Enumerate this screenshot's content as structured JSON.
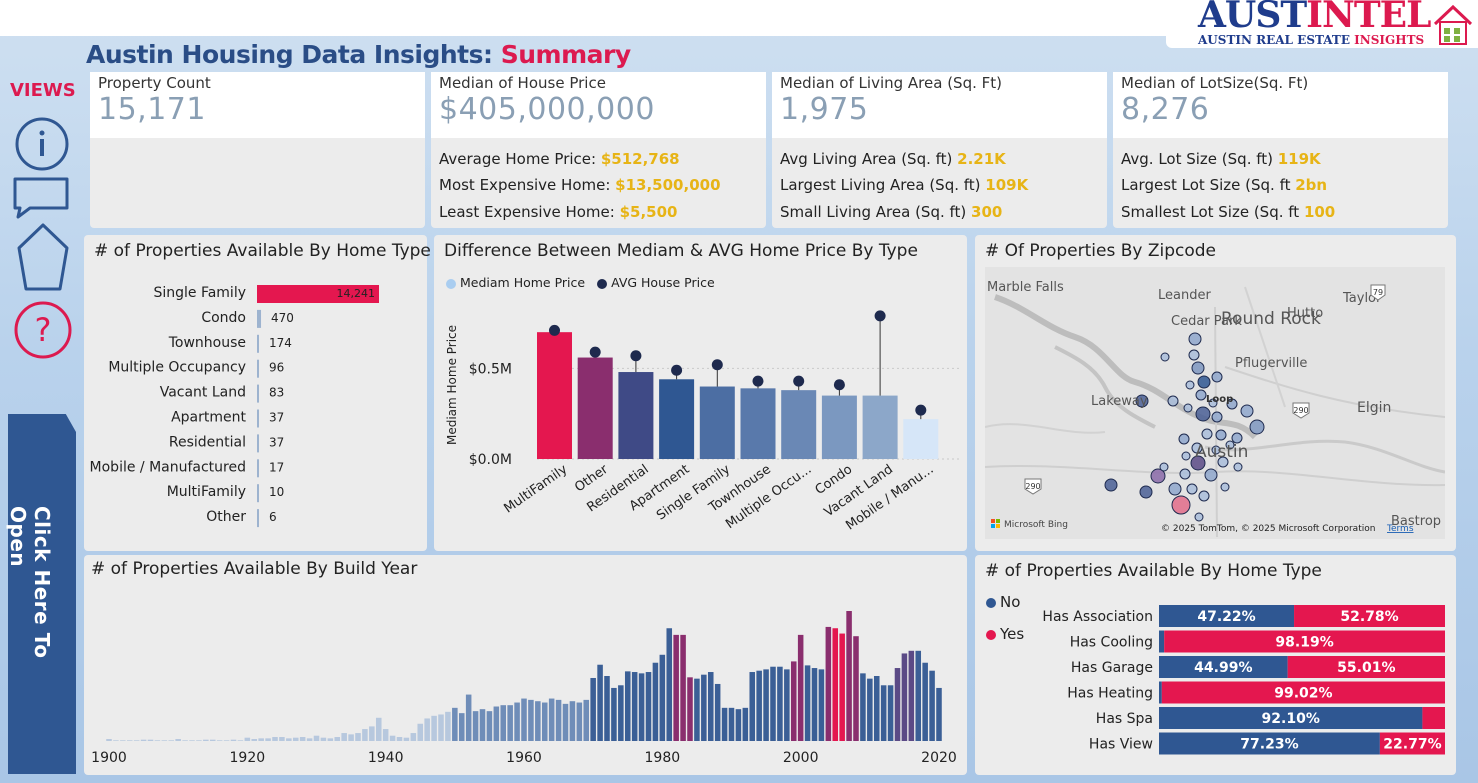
{
  "brand": {
    "logo_part1": "AUST",
    "logo_part2": "INTEL",
    "tagline_part1": "AUSTIN REAL ESTATE ",
    "tagline_part2": "INSIGHTS"
  },
  "header": {
    "title_main": "Austin Housing Data Insights: ",
    "title_accent": "Summary"
  },
  "sidebar": {
    "views_label": "VIEWS",
    "items": [
      {
        "icon": "info-icon"
      },
      {
        "icon": "chat-icon"
      },
      {
        "icon": "pentagon-icon"
      },
      {
        "icon": "help-icon"
      }
    ],
    "open_label": "Click Here To Open"
  },
  "kpis": [
    {
      "label": "Property Count",
      "value": "15,171",
      "lines": []
    },
    {
      "label": "Median of House Price",
      "value": "$405,000,000",
      "lines": [
        {
          "label": "Average Home Price: ",
          "value": "$512,768"
        },
        {
          "label": "Most Expensive Home: ",
          "value": "$13,500,000"
        },
        {
          "label": "Least Expensive Home: ",
          "value": "$5,500"
        }
      ]
    },
    {
      "label": "Median of Living Area (Sq. Ft)",
      "value": "1,975",
      "lines": [
        {
          "label": "Avg Living Area (Sq. ft) ",
          "value": "2.21K"
        },
        {
          "label": "Largest Living Area (Sq. ft) ",
          "value": "109K"
        },
        {
          "label": "Small Living Area (Sq. ft) ",
          "value": "300"
        }
      ]
    },
    {
      "label": "Median of LotSize(Sq. Ft)",
      "value": "8,276",
      "lines": [
        {
          "label": "Avg. Lot Size (Sq. ft) ",
          "value": "119K"
        },
        {
          "label": "Largest Lot Size (Sq. ft ",
          "value": "2bn"
        },
        {
          "label": "Smallest Lot Size (Sq. ft ",
          "value": "100"
        }
      ]
    }
  ],
  "colors": {
    "accent": "#dc1a4f",
    "title_blue": "#2a4d86",
    "highlight_yellow": "#e7b416",
    "no_blue": "#2f5792",
    "yes_red": "#e4174f"
  },
  "chart_data": [
    {
      "id": "home_type_bar",
      "type": "bar",
      "title": "# of Properties Available By Home Type",
      "orientation": "horizontal",
      "categories": [
        "Single Family",
        "Condo",
        "Townhouse",
        "Multiple Occupancy",
        "Vacant Land",
        "Apartment",
        "Residential",
        "Mobile / Manufactured",
        "MultiFamily",
        "Other"
      ],
      "values": [
        14241,
        470,
        174,
        96,
        83,
        37,
        37,
        17,
        10,
        6
      ],
      "value_labels": [
        "14,241",
        "470",
        "174",
        "96",
        "83",
        "37",
        "37",
        "17",
        "10",
        "6"
      ]
    },
    {
      "id": "median_vs_avg",
      "type": "bar",
      "title": "Difference Between Mediam & AVG Home Price By Type",
      "legend": [
        "Mediam Home Price",
        "AVG House Price"
      ],
      "legend_position": "top-left",
      "ylabel": "Mediam Home Price",
      "ytick_labels": [
        "$0.0M",
        "$0.5M"
      ],
      "yticks": [
        0,
        0.5
      ],
      "ylim": [
        0,
        0.85
      ],
      "categories": [
        "MultiFamily",
        "Other",
        "Residential",
        "Apartment",
        "Single Family",
        "Townhouse",
        "Multiple Occu...",
        "Condo",
        "Vacant Land",
        "Mobile / Manu..."
      ],
      "series": [
        {
          "name": "Mediam Home Price",
          "values": [
            0.7,
            0.56,
            0.48,
            0.44,
            0.4,
            0.39,
            0.38,
            0.35,
            0.35,
            0.22
          ]
        },
        {
          "name": "AVG House Price",
          "values": [
            0.71,
            0.59,
            0.57,
            0.49,
            0.52,
            0.43,
            0.43,
            0.41,
            0.79,
            0.27
          ]
        }
      ],
      "bar_colors": [
        "#e4174f",
        "#8a2e6e",
        "#3f4a86",
        "#2f5792",
        "#4c6ea3",
        "#5979ab",
        "#6a88b5",
        "#7b98c0",
        "#8ca7c9",
        "#d6e6f8"
      ]
    },
    {
      "id": "build_year",
      "type": "bar",
      "title": "# of Properties Available By Build Year",
      "xtick_labels": [
        "1900",
        "1920",
        "1940",
        "1960",
        "1980",
        "2000",
        "2020"
      ],
      "x": [
        1900,
        1901,
        1902,
        1903,
        1904,
        1905,
        1906,
        1907,
        1908,
        1909,
        1910,
        1911,
        1912,
        1913,
        1914,
        1915,
        1916,
        1917,
        1918,
        1919,
        1920,
        1921,
        1922,
        1923,
        1924,
        1925,
        1926,
        1927,
        1928,
        1929,
        1930,
        1931,
        1932,
        1933,
        1934,
        1935,
        1936,
        1937,
        1938,
        1939,
        1940,
        1941,
        1942,
        1943,
        1944,
        1945,
        1946,
        1947,
        1948,
        1949,
        1950,
        1951,
        1952,
        1953,
        1954,
        1955,
        1956,
        1957,
        1958,
        1959,
        1960,
        1961,
        1962,
        1963,
        1964,
        1965,
        1966,
        1967,
        1968,
        1969,
        1970,
        1971,
        1972,
        1973,
        1974,
        1975,
        1976,
        1977,
        1978,
        1979,
        1980,
        1981,
        1982,
        1983,
        1984,
        1985,
        1986,
        1987,
        1988,
        1989,
        1990,
        1991,
        1992,
        1993,
        1994,
        1995,
        1996,
        1997,
        1998,
        1999,
        2000,
        2001,
        2002,
        2003,
        2004,
        2005,
        2006,
        2007,
        2008,
        2009,
        2010,
        2011,
        2012,
        2013,
        2014,
        2015,
        2016,
        2017,
        2018,
        2019,
        2020
      ],
      "values": [
        3,
        1,
        1,
        1,
        1,
        2,
        2,
        1,
        1,
        1,
        3,
        1,
        1,
        1,
        2,
        2,
        1,
        1,
        2,
        1,
        5,
        3,
        4,
        4,
        6,
        6,
        4,
        5,
        6,
        4,
        8,
        5,
        4,
        6,
        12,
        10,
        12,
        18,
        22,
        35,
        18,
        8,
        6,
        5,
        12,
        26,
        34,
        38,
        40,
        44,
        50,
        42,
        70,
        45,
        48,
        45,
        52,
        54,
        54,
        58,
        64,
        62,
        60,
        58,
        64,
        62,
        56,
        60,
        58,
        62,
        95,
        115,
        98,
        80,
        84,
        105,
        104,
        102,
        104,
        118,
        130,
        170,
        160,
        160,
        96,
        94,
        100,
        104,
        86,
        50,
        50,
        48,
        50,
        104,
        106,
        108,
        112,
        112,
        108,
        120,
        160,
        114,
        110,
        108,
        172,
        170,
        162,
        196,
        158,
        102,
        94,
        98,
        84,
        84,
        110,
        132,
        136,
        136,
        118,
        106,
        80
      ]
    },
    {
      "id": "amenities",
      "type": "bar",
      "title": "# of Properties Available By Home Type",
      "stacked": true,
      "orientation": "horizontal",
      "legend": [
        "No",
        "Yes"
      ],
      "legend_position": "left",
      "categories": [
        "Has Association",
        "Has Cooling",
        "Has Garage",
        "Has Heating",
        "Has Spa",
        "Has View"
      ],
      "series": [
        {
          "name": "No",
          "values": [
            47.22,
            1.81,
            44.99,
            0.98,
            92.1,
            77.23
          ],
          "labels": [
            "47.22%",
            "",
            "44.99%",
            "",
            "92.10%",
            "77.23%"
          ]
        },
        {
          "name": "Yes",
          "values": [
            52.78,
            98.19,
            55.01,
            99.02,
            7.9,
            22.77
          ],
          "labels": [
            "52.78%",
            "98.19%",
            "55.01%",
            "99.02%",
            "",
            "22.77%"
          ]
        }
      ]
    }
  ],
  "map": {
    "title": "# Of Properties By Zipcode",
    "labels": [
      "Marble Falls",
      "Leander",
      "Round Rock",
      "Hutto",
      "Taylor",
      "Cedar Park",
      "Pflugerville",
      "Lakeway",
      "Loop",
      "Elgin",
      "Austin",
      "Bastrop"
    ],
    "highways": [
      "79",
      "290",
      "290"
    ],
    "attribution": "© 2025 TomTom, © 2025 Microsoft Corporation",
    "terms": "Terms",
    "provider": "Microsoft Bing"
  }
}
